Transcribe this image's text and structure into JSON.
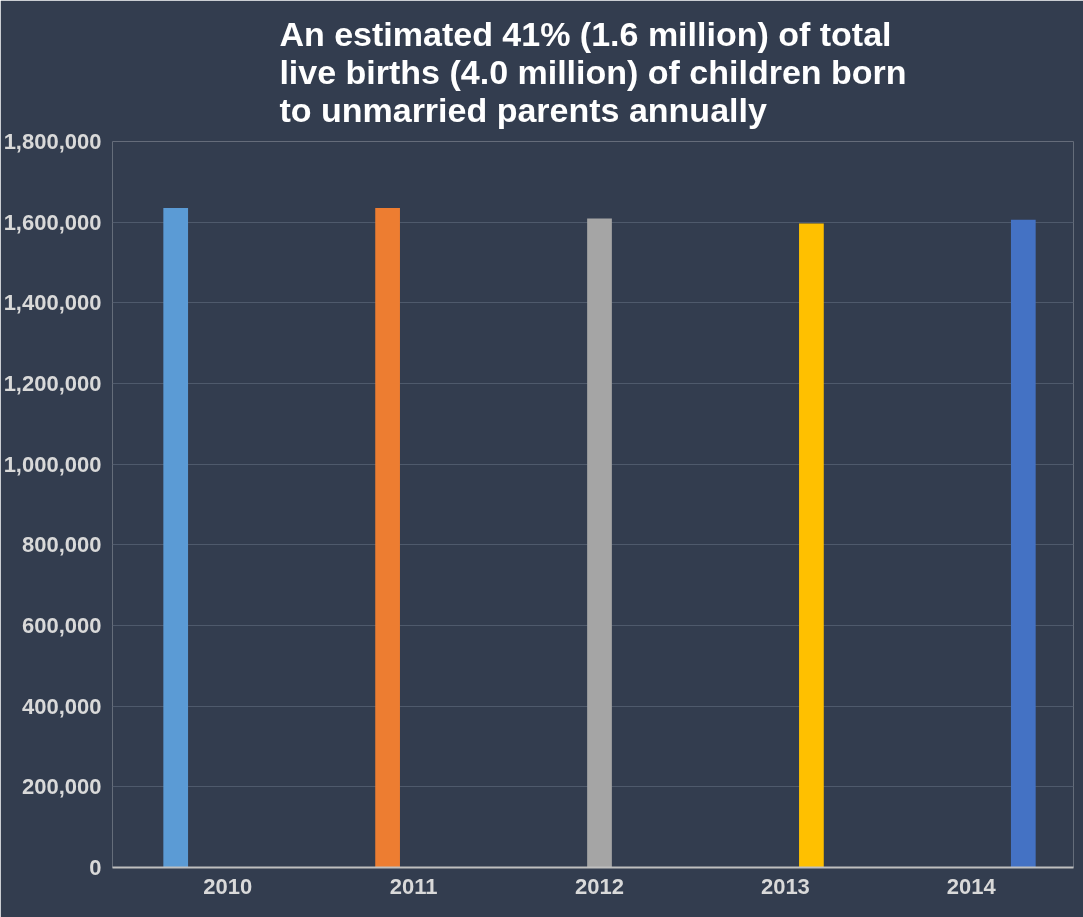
{
  "chart_data": {
    "type": "bar",
    "title": "An estimated 41% (1.6 million) of total\nlive births (4.0 million) of children born\nto unmarried parents  annually",
    "categories": [
      "2010",
      "2011",
      "2012",
      "2013",
      "2014"
    ],
    "series": [
      {
        "color": "#5b9bd5",
        "values": [
          1635000,
          null,
          null,
          null,
          null
        ]
      },
      {
        "color": "#ed7d31",
        "values": [
          null,
          1635000,
          null,
          null,
          null
        ]
      },
      {
        "color": "#a5a5a5",
        "values": [
          null,
          null,
          1609000,
          null,
          null
        ]
      },
      {
        "color": "#ffc000",
        "values": [
          null,
          null,
          null,
          1597000,
          null
        ]
      },
      {
        "color": "#4472c4",
        "values": [
          null,
          null,
          null,
          null,
          1606000
        ]
      }
    ],
    "ylim": [
      0,
      1800000
    ],
    "yticks": [
      0,
      {
        "value": 200000,
        "label": "200,000"
      },
      {
        "value": 400000,
        "label": "400,000"
      },
      {
        "value": 600000,
        "label": "600,000"
      },
      {
        "value": 800000,
        "label": "800,000"
      },
      {
        "value": 1000000,
        "label": "1,000,000"
      },
      {
        "value": 1200000,
        "label": "1,200,000"
      },
      {
        "value": 1400000,
        "label": "1,400,000"
      },
      {
        "value": 1600000,
        "label": "1,600,000"
      },
      {
        "value": 1800000,
        "label": "1,800,000"
      }
    ],
    "grid": "y"
  }
}
